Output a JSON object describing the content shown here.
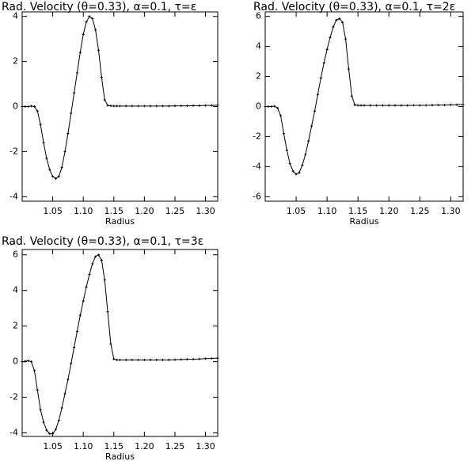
{
  "chart_data": [
    {
      "type": "line",
      "title": "Rad. Velocity (θ=0.33), α=0.1, τ=ε",
      "xlabel": "Radius",
      "color": "#000000",
      "x": [
        1.0,
        1.005,
        1.01,
        1.015,
        1.02,
        1.025,
        1.03,
        1.035,
        1.04,
        1.045,
        1.05,
        1.055,
        1.06,
        1.065,
        1.07,
        1.075,
        1.08,
        1.085,
        1.09,
        1.095,
        1.1,
        1.105,
        1.11,
        1.115,
        1.12,
        1.125,
        1.13,
        1.135,
        1.14,
        1.145,
        1.15,
        1.155,
        1.16,
        1.17,
        1.18,
        1.19,
        1.2,
        1.21,
        1.22,
        1.23,
        1.24,
        1.25,
        1.26,
        1.27,
        1.28,
        1.29,
        1.3,
        1.31,
        1.32
      ],
      "values": [
        0,
        0,
        0,
        0.02,
        0,
        -0.2,
        -0.8,
        -1.6,
        -2.3,
        -2.8,
        -3.1,
        -3.2,
        -3.1,
        -2.7,
        -2.0,
        -1.2,
        -0.3,
        0.6,
        1.5,
        2.4,
        3.2,
        3.75,
        4.0,
        3.9,
        3.4,
        2.5,
        1.3,
        0.3,
        0.05,
        0.03,
        0.02,
        0.02,
        0.02,
        0.02,
        0.02,
        0.02,
        0.02,
        0.02,
        0.02,
        0.02,
        0.02,
        0.03,
        0.03,
        0.03,
        0.04,
        0.04,
        0.05,
        0.05,
        0.06
      ],
      "xlim": [
        1.0,
        1.32
      ],
      "xticks": [
        1.05,
        {
          "value": 1.1,
          "label": "1.10"
        },
        1.15,
        {
          "value": 1.2,
          "label": "1.20"
        },
        1.25,
        {
          "value": 1.3,
          "label": "1.30"
        }
      ],
      "ylim": [
        -4.2,
        4.2
      ],
      "yticks": [
        -4,
        -2,
        0,
        2,
        4
      ]
    },
    {
      "type": "line",
      "title": "Rad. Velocity (θ=0.33), α=0.1, τ=2ε",
      "xlabel": "Radius",
      "color": "#000000",
      "x": [
        1.0,
        1.005,
        1.01,
        1.015,
        1.02,
        1.025,
        1.03,
        1.035,
        1.04,
        1.045,
        1.05,
        1.055,
        1.06,
        1.065,
        1.07,
        1.075,
        1.08,
        1.085,
        1.09,
        1.095,
        1.1,
        1.105,
        1.11,
        1.115,
        1.12,
        1.125,
        1.13,
        1.135,
        1.14,
        1.145,
        1.15,
        1.155,
        1.16,
        1.17,
        1.18,
        1.19,
        1.2,
        1.21,
        1.22,
        1.23,
        1.24,
        1.25,
        1.26,
        1.27,
        1.28,
        1.29,
        1.3,
        1.31,
        1.32
      ],
      "values": [
        0,
        0,
        0,
        0.02,
        -0.1,
        -0.6,
        -1.8,
        -2.9,
        -3.8,
        -4.3,
        -4.5,
        -4.4,
        -3.9,
        -3.2,
        -2.3,
        -1.3,
        -0.3,
        0.8,
        1.9,
        2.9,
        3.8,
        4.6,
        5.3,
        5.75,
        5.85,
        5.6,
        4.5,
        2.5,
        0.7,
        0.1,
        0.08,
        0.07,
        0.07,
        0.07,
        0.07,
        0.07,
        0.07,
        0.07,
        0.07,
        0.07,
        0.08,
        0.08,
        0.08,
        0.09,
        0.1,
        0.1,
        0.11,
        0.12,
        0.13
      ],
      "xlim": [
        1.0,
        1.32
      ],
      "xticks": [
        1.05,
        {
          "value": 1.1,
          "label": "1.10"
        },
        1.15,
        {
          "value": 1.2,
          "label": "1.20"
        },
        1.25,
        {
          "value": 1.3,
          "label": "1.30"
        }
      ],
      "ylim": [
        -6.3,
        6.3
      ],
      "yticks": [
        -6,
        -4,
        -2,
        0,
        2,
        4,
        6
      ]
    },
    {
      "type": "line",
      "title": "Rad. Velocity (θ=0.33), α=0.1, τ=3ε",
      "xlabel": "Radius",
      "color": "#000000",
      "x": [
        1.0,
        1.005,
        1.01,
        1.015,
        1.02,
        1.025,
        1.03,
        1.035,
        1.04,
        1.045,
        1.05,
        1.055,
        1.06,
        1.065,
        1.07,
        1.075,
        1.08,
        1.085,
        1.09,
        1.095,
        1.1,
        1.105,
        1.11,
        1.115,
        1.12,
        1.125,
        1.13,
        1.135,
        1.14,
        1.145,
        1.15,
        1.155,
        1.16,
        1.17,
        1.18,
        1.19,
        1.2,
        1.21,
        1.22,
        1.23,
        1.24,
        1.25,
        1.26,
        1.27,
        1.28,
        1.29,
        1.3,
        1.31,
        1.32
      ],
      "values": [
        0,
        0.02,
        0.05,
        0,
        -0.5,
        -1.6,
        -2.7,
        -3.4,
        -3.85,
        -4.05,
        -4.05,
        -3.8,
        -3.3,
        -2.6,
        -1.8,
        -1.0,
        -0.1,
        0.8,
        1.7,
        2.6,
        3.4,
        4.2,
        4.9,
        5.5,
        5.9,
        6.0,
        5.7,
        4.6,
        2.8,
        1.0,
        0.15,
        0.1,
        0.1,
        0.1,
        0.1,
        0.1,
        0.1,
        0.1,
        0.1,
        0.1,
        0.1,
        0.11,
        0.12,
        0.13,
        0.14,
        0.15,
        0.17,
        0.18,
        0.2
      ],
      "xlim": [
        1.0,
        1.32
      ],
      "xticks": [
        1.05,
        {
          "value": 1.1,
          "label": "1.10"
        },
        1.15,
        {
          "value": 1.2,
          "label": "1.20"
        },
        1.25,
        {
          "value": 1.3,
          "label": "1.30"
        }
      ],
      "ylim": [
        -4.2,
        6.3
      ],
      "yticks": [
        -4,
        -2,
        0,
        2,
        4,
        6
      ]
    }
  ]
}
